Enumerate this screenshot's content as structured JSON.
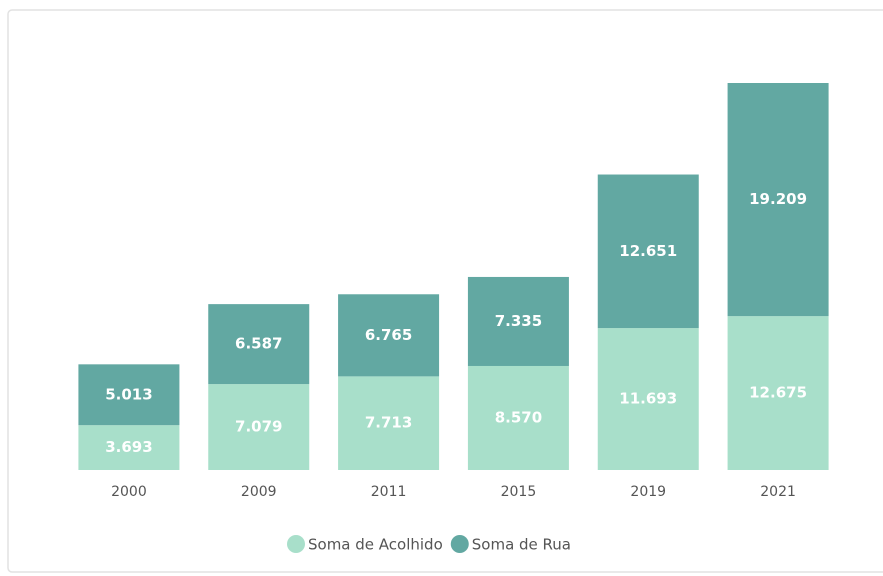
{
  "chart_data": {
    "type": "stacked_bar",
    "categories": [
      "2000",
      "2009",
      "2011",
      "2015",
      "2019",
      "2021"
    ],
    "series": [
      {
        "name": "Soma de Acolhido",
        "color": "#a8dfca",
        "values": [
          3693,
          7079,
          7713,
          8570,
          11693,
          12675
        ],
        "value_labels": [
          "3.693",
          "7.079",
          "7.713",
          "8.570",
          "11.693",
          "12.675"
        ]
      },
      {
        "name": "Soma de Rua",
        "color": "#62a8a2",
        "values": [
          5013,
          6587,
          6765,
          7335,
          12651,
          19209
        ],
        "value_labels": [
          "5.013",
          "6.587",
          "6.765",
          "7.335",
          "12.651",
          "19.209"
        ]
      }
    ]
  }
}
